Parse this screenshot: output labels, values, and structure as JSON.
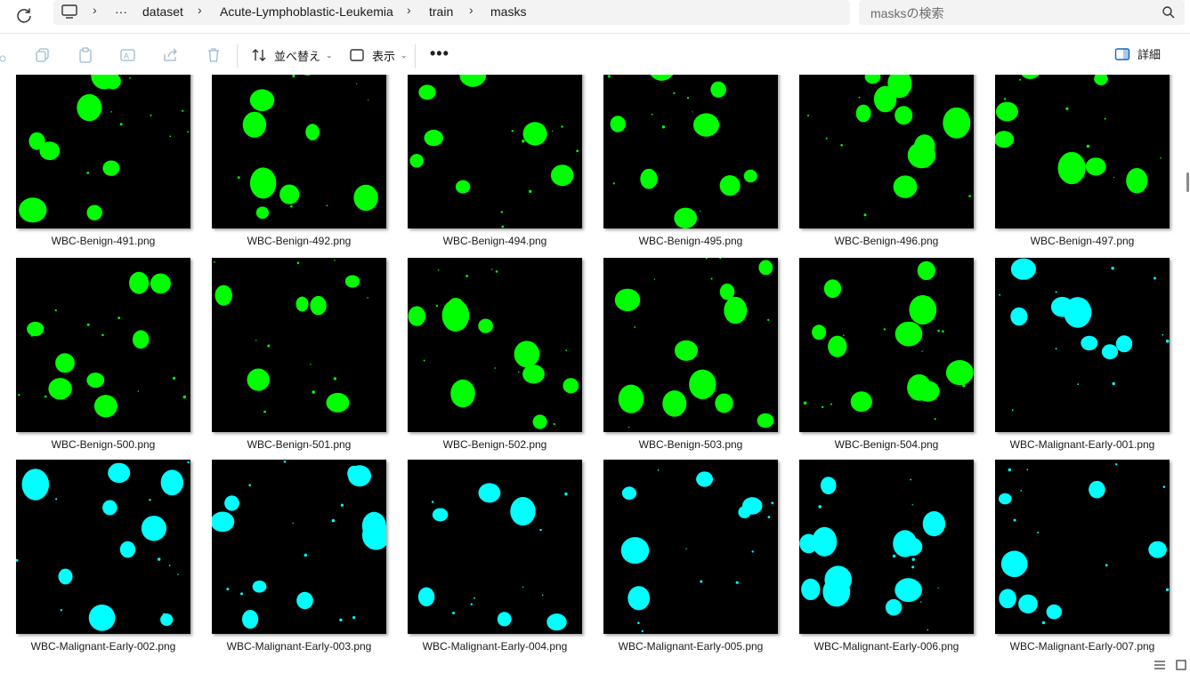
{
  "address_bar": {
    "breadcrumbs": [
      "dataset",
      "Acute-Lymphoblastic-Leukemia",
      "train",
      "masks"
    ],
    "overflow": "···",
    "search_placeholder": "masksの検索"
  },
  "toolbar": {
    "sort_label": "並べ替え",
    "view_label": "表示",
    "more_label": "•••",
    "details_label": "詳細"
  },
  "colors": {
    "benign": "#00ff00",
    "malignant": "#00ffff",
    "background": "#000000"
  },
  "files": [
    {
      "name": "WBC-Benign-491.png",
      "color": "#00ff00"
    },
    {
      "name": "WBC-Benign-492.png",
      "color": "#00ff00"
    },
    {
      "name": "WBC-Benign-494.png",
      "color": "#00ff00"
    },
    {
      "name": "WBC-Benign-495.png",
      "color": "#00ff00"
    },
    {
      "name": "WBC-Benign-496.png",
      "color": "#00ff00"
    },
    {
      "name": "WBC-Benign-497.png",
      "color": "#00ff00"
    },
    {
      "name": "WBC-Benign-500.png",
      "color": "#00ff00"
    },
    {
      "name": "WBC-Benign-501.png",
      "color": "#00ff00"
    },
    {
      "name": "WBC-Benign-502.png",
      "color": "#00ff00"
    },
    {
      "name": "WBC-Benign-503.png",
      "color": "#00ff00"
    },
    {
      "name": "WBC-Benign-504.png",
      "color": "#00ff00"
    },
    {
      "name": "WBC-Malignant-Early-001.png",
      "color": "#00ffff"
    },
    {
      "name": "WBC-Malignant-Early-002.png",
      "color": "#00ffff"
    },
    {
      "name": "WBC-Malignant-Early-003.png",
      "color": "#00ffff"
    },
    {
      "name": "WBC-Malignant-Early-004.png",
      "color": "#00ffff"
    },
    {
      "name": "WBC-Malignant-Early-005.png",
      "color": "#00ffff"
    },
    {
      "name": "WBC-Malignant-Early-006.png",
      "color": "#00ffff"
    },
    {
      "name": "WBC-Malignant-Early-007.png",
      "color": "#00ffff"
    }
  ]
}
